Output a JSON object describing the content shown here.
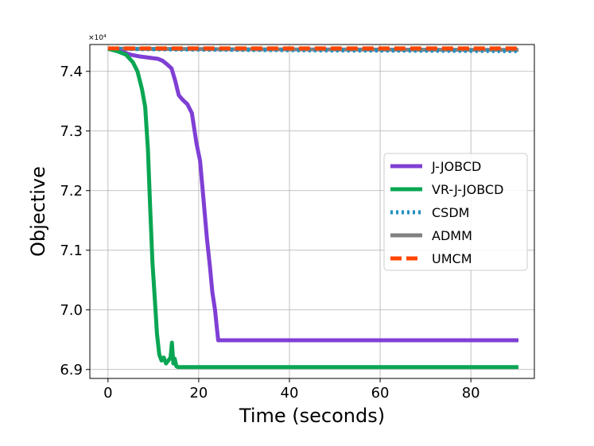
{
  "chart_data": {
    "type": "line",
    "xlabel": "Time (seconds)",
    "ylabel": "Objective",
    "y_scale_label": "×10⁴",
    "xlim": [
      -4,
      94
    ],
    "ylim": [
      6.885,
      7.445
    ],
    "x_ticks": [
      0,
      20,
      40,
      60,
      80
    ],
    "x_tick_labels": [
      "0",
      "20",
      "40",
      "60",
      "80"
    ],
    "y_ticks": [
      6.9,
      7.0,
      7.1,
      7.2,
      7.3,
      7.4
    ],
    "y_tick_labels": [
      "6.9",
      "7.0",
      "7.1",
      "7.2",
      "7.3",
      "7.4"
    ],
    "grid": true,
    "legend_position": "center-right",
    "series": [
      {
        "name": "J-JOBCD",
        "color": "#7f3fd4",
        "style": "solid",
        "x": [
          0,
          3,
          5,
          7,
          9,
          11,
          12,
          13,
          14,
          14.8,
          15.6,
          16.5,
          17.5,
          18.5,
          19.5,
          20.3,
          21,
          21.8,
          22.5,
          23,
          23.6,
          24,
          24.3,
          30,
          50,
          70,
          90.5
        ],
        "y": [
          7.438,
          7.433,
          7.428,
          7.425,
          7.423,
          7.421,
          7.418,
          7.412,
          7.405,
          7.385,
          7.36,
          7.352,
          7.345,
          7.33,
          7.28,
          7.25,
          7.19,
          7.12,
          7.07,
          7.03,
          7.0,
          6.97,
          6.949,
          6.949,
          6.949,
          6.949,
          6.949
        ]
      },
      {
        "name": "VR-J-JOBCD",
        "color": "#0aa653",
        "style": "solid",
        "x": [
          0,
          2,
          4,
          5.5,
          6.5,
          7.5,
          8.2,
          8.8,
          9.3,
          9.8,
          10.3,
          10.8,
          11.3,
          11.8,
          12.3,
          12.8,
          13.3,
          13.8,
          14.1,
          14.4,
          14.7,
          15.1,
          15.5,
          20,
          40,
          60,
          90.5
        ],
        "y": [
          7.438,
          7.434,
          7.428,
          7.415,
          7.4,
          7.37,
          7.34,
          7.27,
          7.17,
          7.08,
          7.02,
          6.96,
          6.925,
          6.915,
          6.92,
          6.91,
          6.915,
          6.92,
          6.945,
          6.91,
          6.918,
          6.905,
          6.904,
          6.904,
          6.904,
          6.904,
          6.904
        ]
      },
      {
        "name": "CSDM",
        "color": "#1f8fc0",
        "style": "dotted",
        "x": [
          0,
          10,
          30,
          50,
          70,
          90.5
        ],
        "y": [
          7.438,
          7.437,
          7.436,
          7.435,
          7.4345,
          7.434
        ]
      },
      {
        "name": "ADMM",
        "color": "#808080",
        "style": "solid",
        "x": [
          0,
          30,
          60,
          90.5
        ],
        "y": [
          7.438,
          7.437,
          7.4365,
          7.436
        ]
      },
      {
        "name": "UMCM",
        "color": "#ff4500",
        "style": "dashed",
        "x": [
          0,
          30,
          60,
          90.5
        ],
        "y": [
          7.4385,
          7.4385,
          7.4385,
          7.4385
        ]
      }
    ]
  }
}
